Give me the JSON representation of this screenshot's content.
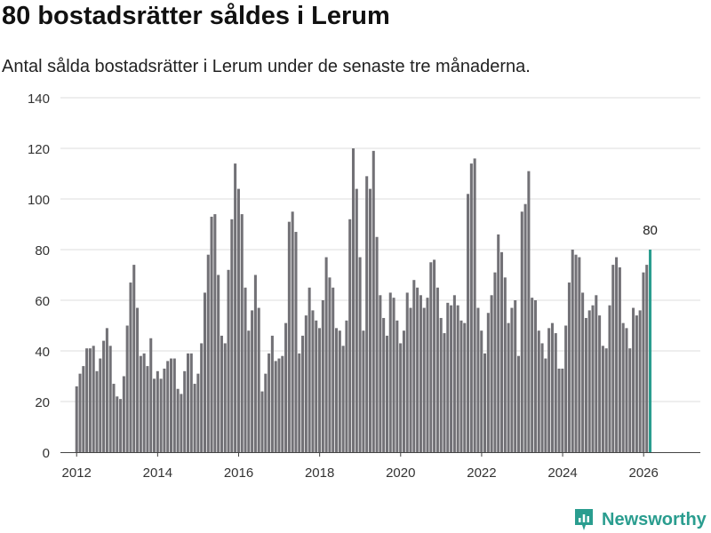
{
  "chart_data": {
    "type": "bar",
    "title": "80 bostadsrätter såldes i Lerum",
    "subtitle": "Antal sålda bostadsrätter i Lerum under de senaste tre månaderna.",
    "xlabel": "",
    "ylabel": "",
    "ylim": [
      0,
      140
    ],
    "yticks": [
      "0",
      "20",
      "40",
      "60",
      "80",
      "100",
      "120",
      "140"
    ],
    "xlim": [
      2011.6,
      2027.4
    ],
    "xticks": [
      "2012",
      "2014",
      "2016",
      "2018",
      "2020",
      "2022",
      "2024",
      "2026"
    ],
    "x_start": 2012.0,
    "x_step": 0.0833,
    "values": [
      26,
      31,
      34,
      41,
      41,
      42,
      32,
      37,
      44,
      49,
      42,
      27,
      22,
      21,
      30,
      50,
      67,
      74,
      57,
      38,
      39,
      34,
      45,
      29,
      32,
      29,
      33,
      36,
      37,
      37,
      25,
      23,
      32,
      39,
      39,
      27,
      31,
      43,
      63,
      78,
      93,
      94,
      70,
      46,
      43,
      72,
      92,
      114,
      104,
      94,
      65,
      48,
      56,
      70,
      57,
      24,
      31,
      39,
      46,
      36,
      37,
      38,
      51,
      91,
      95,
      87,
      39,
      46,
      54,
      65,
      56,
      52,
      49,
      60,
      77,
      69,
      65,
      49,
      48,
      42,
      52,
      92,
      120,
      104,
      77,
      48,
      109,
      104,
      119,
      85,
      62,
      53,
      46,
      63,
      61,
      52,
      43,
      48,
      63,
      57,
      68,
      65,
      62,
      57,
      61,
      75,
      76,
      65,
      53,
      47,
      59,
      58,
      62,
      58,
      52,
      51,
      102,
      114,
      116,
      57,
      48,
      39,
      55,
      62,
      71,
      86,
      79,
      69,
      51,
      57,
      60,
      38,
      95,
      98,
      111,
      61,
      60,
      48,
      43,
      37,
      49,
      51,
      47,
      33,
      33,
      50,
      67,
      80,
      78,
      77,
      63,
      53,
      56,
      58,
      62,
      54,
      42,
      41,
      58,
      74,
      77,
      73,
      51,
      49,
      41,
      57,
      54,
      56,
      71,
      74,
      80
    ],
    "highlight_label": "80",
    "bar_color": "#727176",
    "highlight_color": "#2a9d8f"
  },
  "brand": {
    "name": "Newsworthy",
    "color": "#2a9d8f"
  }
}
